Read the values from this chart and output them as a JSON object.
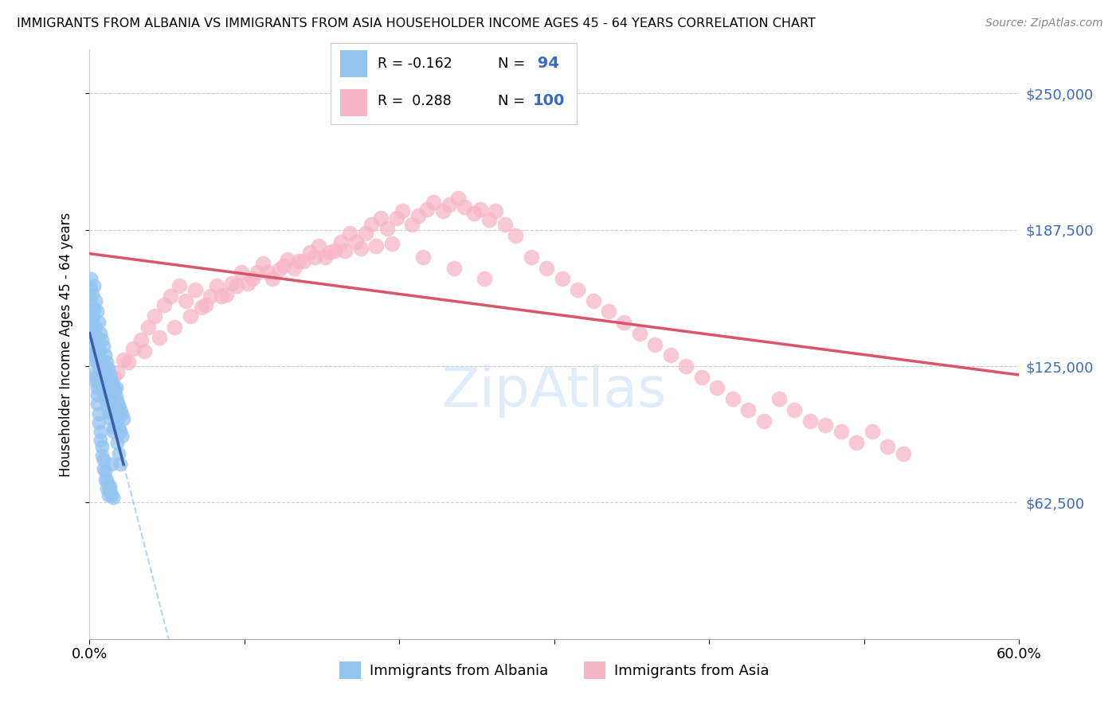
{
  "title": "IMMIGRANTS FROM ALBANIA VS IMMIGRANTS FROM ASIA HOUSEHOLDER INCOME AGES 45 - 64 YEARS CORRELATION CHART",
  "source": "Source: ZipAtlas.com",
  "ylabel": "Householder Income Ages 45 - 64 years",
  "y_tick_labels": [
    "$62,500",
    "$125,000",
    "$187,500",
    "$250,000"
  ],
  "y_tick_values": [
    62500,
    125000,
    187500,
    250000
  ],
  "ylim": [
    0,
    270000
  ],
  "xlim": [
    0.0,
    0.6
  ],
  "legend_r1": "-0.162",
  "legend_n1": "94",
  "legend_r2": "0.288",
  "legend_n2": "100",
  "color_albania": "#94c4f0",
  "color_asia": "#f7b6c8",
  "color_albania_line_solid": "#3a5fa8",
  "color_albania_line_dash": "#94c4f0",
  "color_asia_line": "#d9546a",
  "albania_scatter_x": [
    0.001,
    0.001,
    0.002,
    0.002,
    0.002,
    0.003,
    0.003,
    0.003,
    0.003,
    0.004,
    0.004,
    0.004,
    0.004,
    0.005,
    0.005,
    0.005,
    0.005,
    0.006,
    0.006,
    0.006,
    0.007,
    0.007,
    0.007,
    0.008,
    0.008,
    0.008,
    0.009,
    0.009,
    0.009,
    0.01,
    0.01,
    0.01,
    0.011,
    0.011,
    0.011,
    0.012,
    0.012,
    0.012,
    0.013,
    0.013,
    0.013,
    0.014,
    0.014,
    0.015,
    0.015,
    0.015,
    0.016,
    0.016,
    0.017,
    0.017,
    0.018,
    0.018,
    0.019,
    0.019,
    0.02,
    0.02,
    0.021,
    0.021,
    0.022,
    0.001,
    0.002,
    0.003,
    0.004,
    0.005,
    0.006,
    0.007,
    0.008,
    0.009,
    0.01,
    0.011,
    0.012,
    0.013,
    0.014,
    0.015,
    0.016,
    0.017,
    0.018,
    0.019,
    0.02,
    0.001,
    0.002,
    0.003,
    0.004,
    0.005,
    0.006,
    0.007,
    0.008,
    0.009,
    0.01,
    0.011,
    0.012,
    0.013,
    0.014,
    0.015
  ],
  "albania_scatter_y": [
    153000,
    145000,
    158000,
    148000,
    138000,
    162000,
    151000,
    140000,
    128000,
    155000,
    143000,
    132000,
    120000,
    150000,
    138000,
    127000,
    115000,
    145000,
    133000,
    122000,
    140000,
    129000,
    118000,
    137000,
    126000,
    115000,
    134000,
    123000,
    112000,
    130000,
    120000,
    110000,
    127000,
    117000,
    107000,
    124000,
    114000,
    104000,
    121000,
    111000,
    101000,
    118000,
    108000,
    116000,
    107000,
    97000,
    114000,
    104000,
    111000,
    102000,
    109000,
    100000,
    107000,
    97000,
    105000,
    95000,
    103000,
    93000,
    101000,
    160000,
    142000,
    130000,
    118000,
    108000,
    99000,
    91000,
    84000,
    78000,
    73000,
    69000,
    66000,
    70000,
    80000,
    95000,
    105000,
    115000,
    90000,
    85000,
    80000,
    165000,
    147000,
    134000,
    122000,
    112000,
    103000,
    95000,
    88000,
    82000,
    77000,
    73000,
    70000,
    68000,
    66000,
    65000
  ],
  "asia_scatter_x": [
    0.012,
    0.018,
    0.022,
    0.028,
    0.033,
    0.038,
    0.042,
    0.048,
    0.052,
    0.058,
    0.062,
    0.068,
    0.072,
    0.078,
    0.082,
    0.088,
    0.092,
    0.098,
    0.102,
    0.108,
    0.112,
    0.118,
    0.122,
    0.128,
    0.132,
    0.138,
    0.142,
    0.148,
    0.152,
    0.158,
    0.162,
    0.168,
    0.172,
    0.178,
    0.182,
    0.188,
    0.192,
    0.198,
    0.202,
    0.208,
    0.212,
    0.218,
    0.222,
    0.228,
    0.232,
    0.238,
    0.242,
    0.248,
    0.252,
    0.258,
    0.262,
    0.268,
    0.275,
    0.285,
    0.295,
    0.305,
    0.315,
    0.325,
    0.335,
    0.345,
    0.355,
    0.365,
    0.375,
    0.385,
    0.395,
    0.405,
    0.415,
    0.425,
    0.435,
    0.445,
    0.455,
    0.465,
    0.475,
    0.485,
    0.495,
    0.505,
    0.515,
    0.525,
    0.015,
    0.025,
    0.035,
    0.045,
    0.055,
    0.065,
    0.075,
    0.085,
    0.095,
    0.105,
    0.115,
    0.125,
    0.135,
    0.145,
    0.155,
    0.165,
    0.175,
    0.185,
    0.195,
    0.215,
    0.235,
    0.255
  ],
  "asia_scatter_y": [
    117000,
    122000,
    128000,
    133000,
    137000,
    143000,
    148000,
    153000,
    157000,
    162000,
    155000,
    160000,
    152000,
    157000,
    162000,
    158000,
    163000,
    168000,
    163000,
    168000,
    172000,
    165000,
    169000,
    174000,
    170000,
    173000,
    177000,
    180000,
    175000,
    178000,
    182000,
    186000,
    182000,
    186000,
    190000,
    193000,
    188000,
    193000,
    196000,
    190000,
    194000,
    197000,
    200000,
    196000,
    199000,
    202000,
    198000,
    195000,
    197000,
    192000,
    196000,
    190000,
    185000,
    175000,
    170000,
    165000,
    160000,
    155000,
    150000,
    145000,
    140000,
    135000,
    130000,
    125000,
    120000,
    115000,
    110000,
    105000,
    100000,
    110000,
    105000,
    100000,
    98000,
    95000,
    90000,
    95000,
    88000,
    85000,
    120000,
    127000,
    132000,
    138000,
    143000,
    148000,
    153000,
    157000,
    162000,
    165000,
    168000,
    171000,
    173000,
    175000,
    177000,
    178000,
    179000,
    180000,
    181000,
    175000,
    170000,
    165000
  ]
}
